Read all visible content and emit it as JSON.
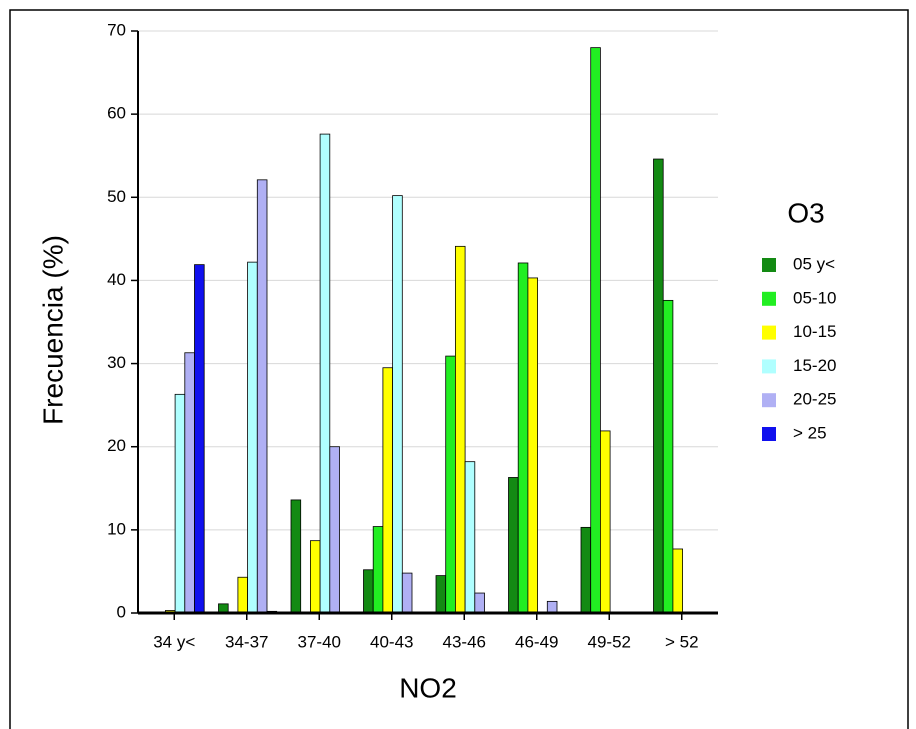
{
  "chart_data": {
    "type": "bar",
    "x_label": "NO2",
    "y_label": "Frecuencia (%)",
    "legend_title": "O3",
    "categories": [
      "34 y<",
      "34-37",
      "37-40",
      "40-43",
      "43-46",
      "46-49",
      "49-52",
      "> 52"
    ],
    "series": [
      {
        "name": "05 y<",
        "color": "#138a13",
        "values": [
          0,
          1.1,
          13.6,
          5.2,
          4.5,
          16.3,
          10.3,
          54.6
        ]
      },
      {
        "name": "05-10",
        "color": "#22ee22",
        "values": [
          0,
          0,
          0.1,
          10.4,
          30.9,
          42.1,
          68,
          37.6
        ]
      },
      {
        "name": "10-15",
        "color": "#ffff00",
        "values": [
          0.3,
          4.3,
          8.7,
          29.5,
          44.1,
          40.3,
          21.9,
          7.7
        ]
      },
      {
        "name": "15-20",
        "color": "#b0ffff",
        "values": [
          26.3,
          42.2,
          57.6,
          50.2,
          18.2,
          0,
          0,
          0
        ]
      },
      {
        "name": "20-25",
        "color": "#b0b0f4",
        "values": [
          31.3,
          52.1,
          20,
          4.8,
          2.4,
          1.4,
          0,
          0
        ]
      },
      {
        "name": "> 25",
        "color": "#1010ee",
        "values": [
          41.9,
          0.2,
          0,
          0,
          0,
          0,
          0,
          0
        ]
      }
    ],
    "ylim": [
      0,
      70
    ],
    "yticks": [
      0,
      10,
      20,
      30,
      40,
      50,
      60,
      70
    ],
    "grid": true,
    "legend": "right"
  }
}
